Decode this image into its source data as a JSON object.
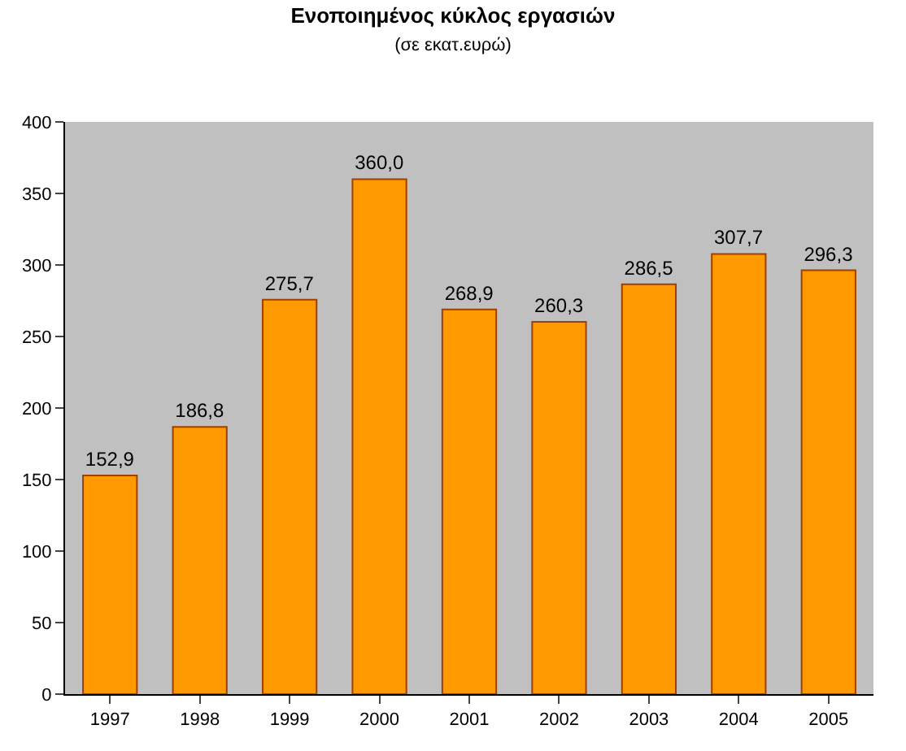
{
  "chart_data": {
    "type": "bar",
    "title": "Ενοποιημένος κύκλος εργασιών",
    "subtitle": "(σε εκατ.ευρώ)",
    "categories": [
      "1997",
      "1998",
      "1999",
      "2000",
      "2001",
      "2002",
      "2003",
      "2004",
      "2005"
    ],
    "values": [
      152.9,
      186.8,
      275.7,
      360.0,
      268.9,
      260.3,
      286.5,
      307.7,
      296.3
    ],
    "value_labels": [
      "152,9",
      "186,8",
      "275,7",
      "360,0",
      "268,9",
      "260,3",
      "286,5",
      "307,7",
      "296,3"
    ],
    "color": "#ff9900",
    "ylim": [
      0,
      400
    ],
    "yticks": [
      0,
      50,
      100,
      150,
      200,
      250,
      300,
      350,
      400
    ],
    "grid": false,
    "legend": false
  }
}
